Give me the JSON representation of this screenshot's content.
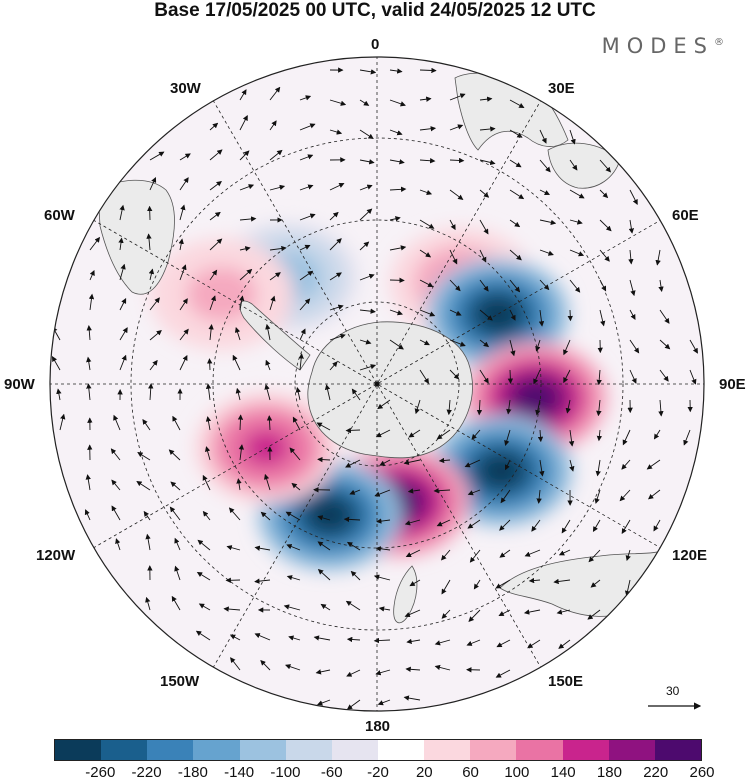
{
  "header": {
    "title": "Base 17/05/2025 00 UTC, valid 24/05/2025 12 UTC",
    "brand": "MODES",
    "brand_mark": "®"
  },
  "map": {
    "projection": "south polar stereographic",
    "longitude_labels": {
      "top": "0",
      "top_right": "30E",
      "upper_right": "60E",
      "right": "90E",
      "lower_right": "120E",
      "bottom_right": "150E",
      "bottom": "180",
      "bottom_left": "150W",
      "lower_left": "120W",
      "left": "90W",
      "upper_left": "60W",
      "top_left": "30W"
    },
    "reference_vector": {
      "label": "30",
      "magnitude": 30
    },
    "anomalies": [
      {
        "lon": 40,
        "lat": -57,
        "sign": "positive",
        "value": 140
      },
      {
        "lon": 60,
        "lat": -55,
        "sign": "negative",
        "value": -260
      },
      {
        "lon": 95,
        "lat": -50,
        "sign": "positive",
        "value": 260
      },
      {
        "lon": 125,
        "lat": -52,
        "sign": "negative",
        "value": -260
      },
      {
        "lon": 170,
        "lat": -60,
        "sign": "positive",
        "value": 260
      },
      {
        "lon": -160,
        "lat": -55,
        "sign": "negative",
        "value": -260
      },
      {
        "lon": -120,
        "lat": -58,
        "sign": "positive",
        "value": 180
      },
      {
        "lon": -40,
        "lat": -55,
        "sign": "negative",
        "value": -100
      },
      {
        "lon": -60,
        "lat": -45,
        "sign": "positive",
        "value": 100
      }
    ]
  },
  "colorbar": {
    "colors": [
      "#0b3b5a",
      "#1a5f8d",
      "#3a82b8",
      "#66a3cf",
      "#9cc2e0",
      "#c9d8ea",
      "#e6e4f0",
      "#ffffff",
      "#fbd8df",
      "#f5a9bf",
      "#ea73a4",
      "#c9248d",
      "#8f1280",
      "#4d0a6e"
    ],
    "tick_labels": [
      "-260",
      "-220",
      "-180",
      "-140",
      "-100",
      "-60",
      "-20",
      "20",
      "60",
      "100",
      "140",
      "180",
      "220",
      "260"
    ]
  }
}
